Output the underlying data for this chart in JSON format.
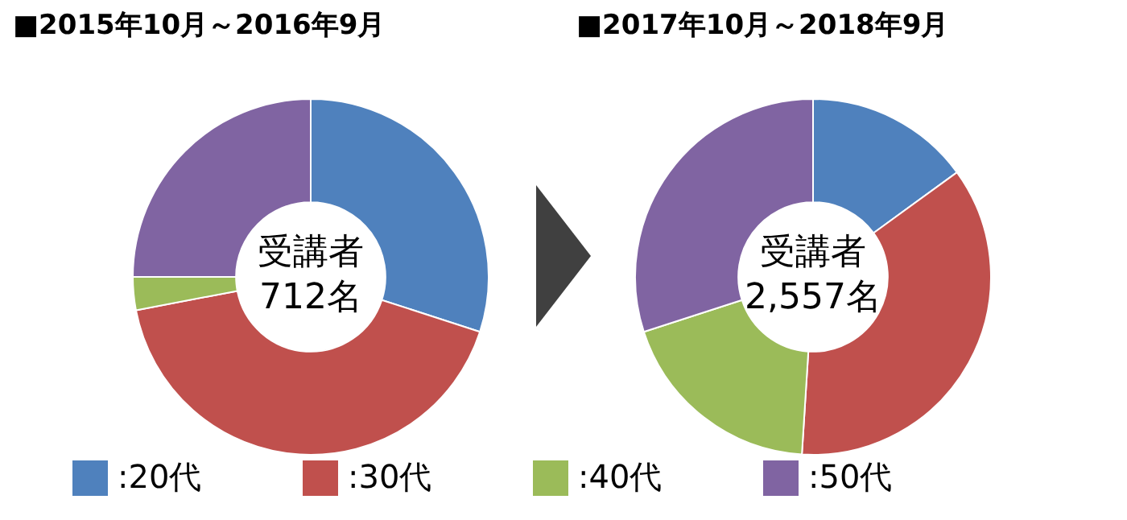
{
  "chart_data": [
    {
      "type": "donut",
      "title": "■2015年10月～2016年9月",
      "categories": [
        ":20代",
        ":30代",
        ":40代",
        ":50代"
      ],
      "values": [
        30,
        42,
        3,
        25
      ],
      "colors": [
        "#4f81bd",
        "#c0504d",
        "#9bbb59",
        "#8064a2"
      ],
      "annotations": [
        "受講者\n712名"
      ],
      "legend": "bottom"
    },
    {
      "type": "donut",
      "title": "■2017年10月～2018年9月",
      "values": [
        15,
        36,
        19,
        30
      ],
      "colors": [
        "#4f81bd",
        "#c0504d",
        "#9bbb59",
        "#8064a2"
      ],
      "annotations": [
        "受講者\n2,557名"
      ]
    }
  ]
}
